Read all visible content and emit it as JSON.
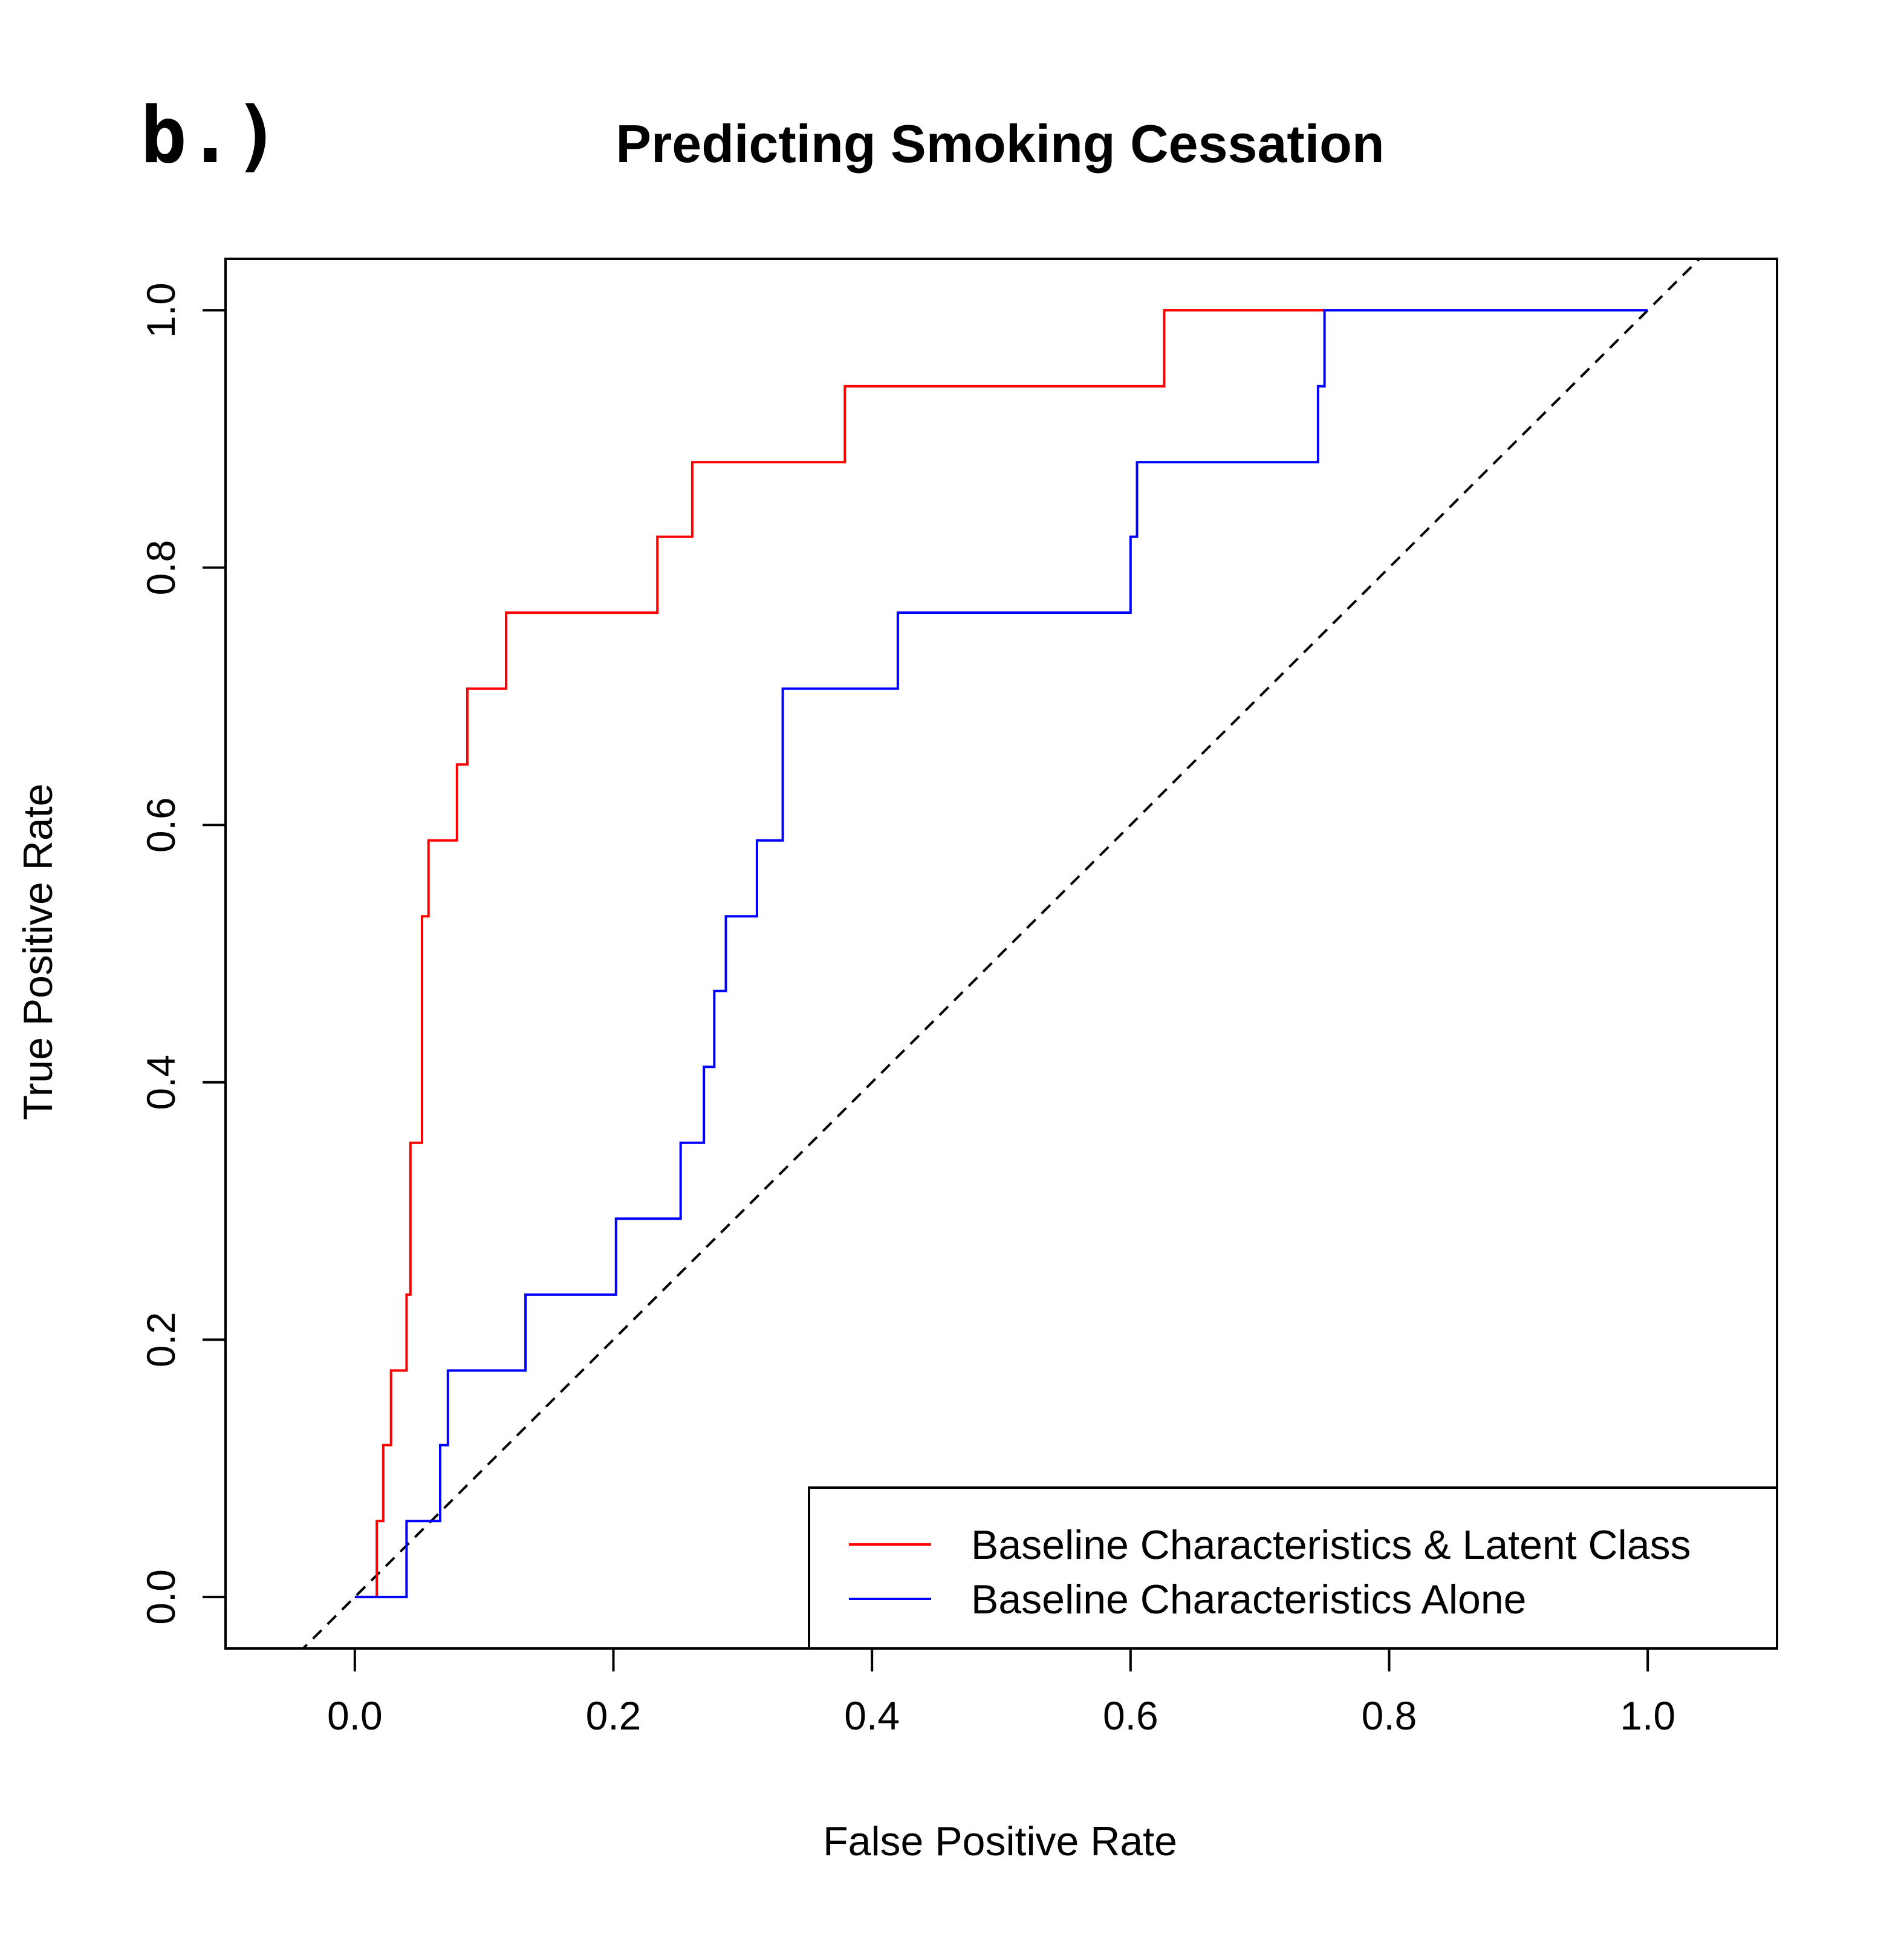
{
  "panel_label": "b.)",
  "chart_data": {
    "type": "line",
    "title": "Predicting Smoking Cessation",
    "xlabel": "False Positive Rate",
    "ylabel": "True Positive Rate",
    "xlim": [
      -0.1,
      1.1
    ],
    "ylim": [
      -0.04,
      1.04
    ],
    "xticks": [
      0.0,
      0.2,
      0.4,
      0.6,
      0.8,
      1.0
    ],
    "xtick_labels": [
      "0.0",
      "0.2",
      "0.4",
      "0.6",
      "0.8",
      "1.0"
    ],
    "yticks": [
      0.0,
      0.2,
      0.4,
      0.6,
      0.8,
      1.0
    ],
    "ytick_labels": [
      "0.0",
      "0.2",
      "0.4",
      "0.6",
      "0.8",
      "1.0"
    ],
    "grid": false,
    "legend_position": "bottom-right",
    "reference_line": {
      "style": "dashed",
      "color": "#000000",
      "slope": 1,
      "intercept": 0
    },
    "series": [
      {
        "name": "Baseline Characteristics & Latent Class",
        "color": "#ff0000",
        "step": true,
        "points": [
          [
            0.0,
            0.0
          ],
          [
            0.017,
            0.0
          ],
          [
            0.017,
            0.059
          ],
          [
            0.022,
            0.059
          ],
          [
            0.022,
            0.118
          ],
          [
            0.028,
            0.118
          ],
          [
            0.028,
            0.176
          ],
          [
            0.04,
            0.176
          ],
          [
            0.04,
            0.235
          ],
          [
            0.043,
            0.235
          ],
          [
            0.043,
            0.353
          ],
          [
            0.052,
            0.353
          ],
          [
            0.052,
            0.529
          ],
          [
            0.057,
            0.529
          ],
          [
            0.057,
            0.588
          ],
          [
            0.079,
            0.588
          ],
          [
            0.079,
            0.647
          ],
          [
            0.087,
            0.647
          ],
          [
            0.087,
            0.706
          ],
          [
            0.117,
            0.706
          ],
          [
            0.117,
            0.765
          ],
          [
            0.234,
            0.765
          ],
          [
            0.234,
            0.824
          ],
          [
            0.261,
            0.824
          ],
          [
            0.261,
            0.882
          ],
          [
            0.379,
            0.882
          ],
          [
            0.379,
            0.941
          ],
          [
            0.626,
            0.941
          ],
          [
            0.626,
            1.0
          ],
          [
            0.75,
            1.0
          ]
        ]
      },
      {
        "name": "Baseline Characteristics Alone",
        "color": "#0000ff",
        "step": true,
        "points": [
          [
            0.0,
            0.0
          ],
          [
            0.04,
            0.0
          ],
          [
            0.04,
            0.059
          ],
          [
            0.066,
            0.059
          ],
          [
            0.066,
            0.118
          ],
          [
            0.072,
            0.118
          ],
          [
            0.072,
            0.176
          ],
          [
            0.132,
            0.176
          ],
          [
            0.132,
            0.235
          ],
          [
            0.202,
            0.235
          ],
          [
            0.202,
            0.294
          ],
          [
            0.252,
            0.294
          ],
          [
            0.252,
            0.353
          ],
          [
            0.27,
            0.353
          ],
          [
            0.27,
            0.412
          ],
          [
            0.278,
            0.412
          ],
          [
            0.278,
            0.471
          ],
          [
            0.287,
            0.471
          ],
          [
            0.287,
            0.529
          ],
          [
            0.311,
            0.529
          ],
          [
            0.311,
            0.588
          ],
          [
            0.331,
            0.588
          ],
          [
            0.331,
            0.706
          ],
          [
            0.42,
            0.706
          ],
          [
            0.42,
            0.765
          ],
          [
            0.6,
            0.765
          ],
          [
            0.6,
            0.824
          ],
          [
            0.605,
            0.824
          ],
          [
            0.605,
            0.882
          ],
          [
            0.745,
            0.882
          ],
          [
            0.745,
            0.941
          ],
          [
            0.75,
            0.941
          ],
          [
            0.75,
            1.0
          ],
          [
            1.0,
            1.0
          ]
        ]
      }
    ]
  }
}
